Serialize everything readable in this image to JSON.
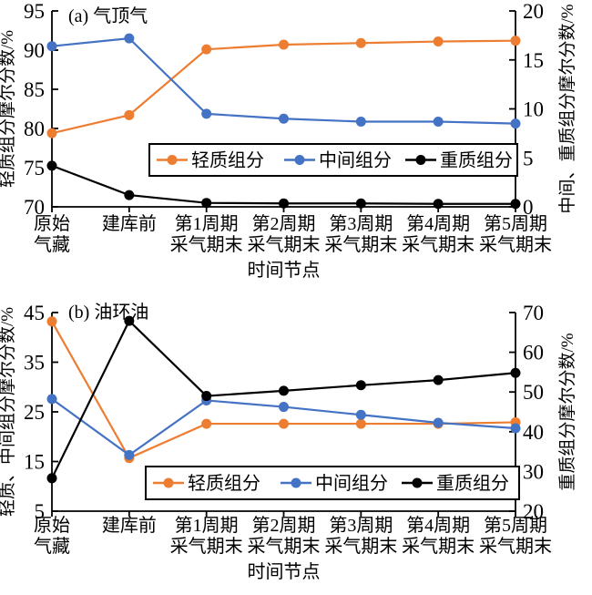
{
  "figure": {
    "background": "#ffffff",
    "text_color": "#000000"
  },
  "chart_data": [
    {
      "type": "line",
      "title": "(a) 气顶气",
      "xlabel": "时间节点",
      "grid": false,
      "legend_position": "inside-bottom-center",
      "categories": [
        "原始气藏",
        "建库前",
        "第1周期采气期末",
        "第2周期采气期末",
        "第3周期采气期末",
        "第4周期采气期末",
        "第5周期采气期末"
      ],
      "categories_display": [
        [
          "原始",
          "气藏"
        ],
        [
          "建库前"
        ],
        [
          "第1周期",
          "采气期末"
        ],
        [
          "第2周期",
          "采气期末"
        ],
        [
          "第3周期",
          "采气期末"
        ],
        [
          "第4周期",
          "采气期末"
        ],
        [
          "第5周期",
          "采气期末"
        ]
      ],
      "left_axis": {
        "label": "轻质组分摩尔分数/%",
        "min": 70,
        "max": 95,
        "ticks": [
          70,
          75,
          80,
          85,
          90,
          95
        ]
      },
      "right_axis": {
        "label": "中间、重质组分摩尔分数/%",
        "min": 0,
        "max": 20,
        "ticks": [
          0,
          5,
          10,
          15,
          20
        ]
      },
      "series": [
        {
          "name": "轻质组分",
          "key": "light-component",
          "color": "#ED7D31",
          "axis": "left",
          "values": [
            79.4,
            81.7,
            90.1,
            90.7,
            90.9,
            91.1,
            91.2
          ]
        },
        {
          "name": "中间组分",
          "key": "middle-component",
          "color": "#4472C4",
          "axis": "right",
          "values": [
            16.4,
            17.2,
            9.5,
            9.0,
            8.7,
            8.7,
            8.5
          ]
        },
        {
          "name": "重质组分",
          "key": "heavy-component",
          "color": "#000000",
          "axis": "right",
          "values": [
            4.2,
            1.2,
            0.4,
            0.35,
            0.35,
            0.3,
            0.3
          ]
        }
      ]
    },
    {
      "type": "line",
      "title": "(b) 油环油",
      "xlabel": "时间节点",
      "grid": false,
      "legend_position": "inside-bottom-center",
      "categories": [
        "原始气藏",
        "建库前",
        "第1周期采气期末",
        "第2周期采气期末",
        "第3周期采气期末",
        "第4周期采气期末",
        "第5周期采气期末"
      ],
      "categories_display": [
        [
          "原始",
          "气藏"
        ],
        [
          "建库前"
        ],
        [
          "第1周期",
          "采气期末"
        ],
        [
          "第2周期",
          "采气期末"
        ],
        [
          "第3周期",
          "采气期末"
        ],
        [
          "第4周期",
          "采气期末"
        ],
        [
          "第5周期",
          "采气期末"
        ]
      ],
      "left_axis": {
        "label": "轻质、中间组分摩尔分数/%",
        "min": 5,
        "max": 45,
        "ticks": [
          5,
          15,
          25,
          35,
          45
        ]
      },
      "right_axis": {
        "label": "重质组分摩尔分数/%",
        "min": 20,
        "max": 70,
        "ticks": [
          20,
          30,
          40,
          50,
          60,
          70
        ]
      },
      "series": [
        {
          "name": "轻质组分",
          "key": "light-component",
          "color": "#ED7D31",
          "axis": "left",
          "values": [
            43.2,
            15.7,
            22.6,
            22.6,
            22.6,
            22.6,
            22.9
          ]
        },
        {
          "name": "中间组分",
          "key": "middle-component",
          "color": "#4472C4",
          "axis": "left",
          "values": [
            27.6,
            16.3,
            27.3,
            26.0,
            24.4,
            22.8,
            21.7
          ]
        },
        {
          "name": "重质组分",
          "key": "heavy-component",
          "color": "#000000",
          "axis": "right",
          "values": [
            28.3,
            67.9,
            49.0,
            50.3,
            51.7,
            53.0,
            54.8
          ]
        }
      ]
    }
  ]
}
